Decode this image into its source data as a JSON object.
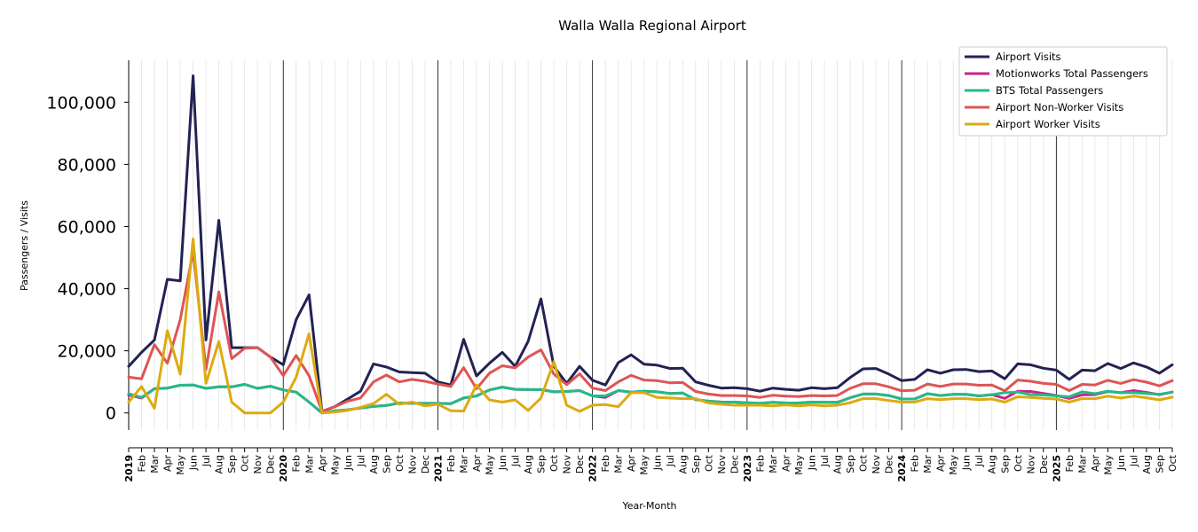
{
  "chart_data": {
    "type": "line",
    "title": "Walla Walla Regional Airport",
    "xlabel": "Year-Month",
    "ylabel": "Passengers / Visits",
    "ylim": [
      -5500,
      113500
    ],
    "yticks": [
      0,
      20000,
      40000,
      60000,
      80000,
      100000
    ],
    "ytick_labels": [
      "0",
      "20,000",
      "40,000",
      "60,000",
      "80,000",
      "100,000"
    ],
    "grid": "vertical minor lines per month, solid year separators",
    "legend_position": "top-right",
    "x": [
      "2019",
      "Feb",
      "Mar",
      "Apr",
      "May",
      "Jun",
      "Jul",
      "Aug",
      "Sep",
      "Oct",
      "Nov",
      "Dec",
      "2020",
      "Feb",
      "Mar",
      "Apr",
      "May",
      "Jun",
      "Jul",
      "Aug",
      "Sep",
      "Oct",
      "Nov",
      "Dec",
      "2021",
      "Feb",
      "Mar",
      "Apr",
      "May",
      "Jun",
      "Jul",
      "Aug",
      "Sep",
      "Oct",
      "Nov",
      "Dec",
      "2022",
      "Feb",
      "Mar",
      "Apr",
      "May",
      "Jun",
      "Jul",
      "Aug",
      "Sep",
      "Oct",
      "Nov",
      "Dec",
      "2023",
      "Feb",
      "Mar",
      "Apr",
      "May",
      "Jun",
      "Jul",
      "Aug",
      "Sep",
      "Oct",
      "Nov",
      "Dec",
      "2024",
      "Feb",
      "Mar",
      "Apr",
      "May",
      "Jun",
      "Jul",
      "Aug",
      "Sep",
      "Oct",
      "Nov",
      "Dec",
      "2025",
      "Feb",
      "Mar",
      "Apr",
      "May",
      "Jun",
      "Jul",
      "Aug",
      "Sep",
      "Oct"
    ],
    "series": [
      {
        "name": "Airport Visits",
        "color": "#222255",
        "values": [
          15000,
          19500,
          23500,
          43000,
          42500,
          108500,
          23500,
          62000,
          21000,
          21000,
          21000,
          18000,
          15500,
          30000,
          38000,
          500,
          2000,
          4500,
          7000,
          15800,
          14800,
          13200,
          13000,
          12800,
          10000,
          9000,
          23700,
          11900,
          16000,
          19500,
          15000,
          23000,
          36700,
          15000,
          9500,
          15000,
          10500,
          9000,
          16200,
          18700,
          15700,
          15400,
          14300,
          14400,
          10000,
          8900,
          8000,
          8100,
          7800,
          7000,
          8000,
          7600,
          7300,
          8100,
          7800,
          8100,
          11400,
          14200,
          14300,
          12500,
          10400,
          10800,
          13900,
          12800,
          13900,
          14000,
          13300,
          13500,
          11000,
          15800,
          15500,
          14400,
          13800,
          10800,
          13800,
          13600,
          15900,
          14300,
          16100,
          14800,
          12800,
          15500
        ]
      },
      {
        "name": "Motionworks Total Passengers",
        "color": "#cc2288",
        "values": [
          5800,
          4800,
          7800,
          8000,
          8900,
          9000,
          7900,
          8400,
          8400,
          9200,
          7900,
          8600,
          7400,
          6700,
          3500,
          0,
          700,
          1000,
          1600,
          2100,
          2400,
          3200,
          3100,
          3100,
          3100,
          3000,
          4800,
          5500,
          7400,
          8300,
          7600,
          7500,
          7500,
          6800,
          6900,
          7200,
          5500,
          5000,
          7200,
          6700,
          7000,
          6800,
          6300,
          6400,
          4300,
          3800,
          3500,
          3500,
          3300,
          3100,
          3400,
          3200,
          3200,
          3500,
          3400,
          3400,
          4900,
          6100,
          6100,
          5600,
          4500,
          4500,
          6200,
          5600,
          6000,
          6000,
          5500,
          5900,
          4700,
          7000,
          6900,
          6300,
          5600,
          4700,
          5800,
          5900,
          6900,
          6500,
          7200,
          6600,
          5900,
          6700
        ]
      },
      {
        "name": "BTS Total Passengers",
        "color": "#22bb88",
        "values": [
          6200,
          5000,
          7800,
          8000,
          8900,
          9000,
          7900,
          8400,
          8400,
          9200,
          7900,
          8600,
          7400,
          6700,
          3500,
          0,
          700,
          1000,
          1600,
          2100,
          2400,
          3200,
          3100,
          3100,
          3100,
          3000,
          4800,
          5500,
          7400,
          8300,
          7600,
          7500,
          7500,
          6800,
          6900,
          7200,
          5500,
          5500,
          7200,
          6700,
          7000,
          6800,
          6300,
          6400,
          4300,
          3800,
          3500,
          3500,
          3300,
          3100,
          3400,
          3200,
          3200,
          3500,
          3400,
          3400,
          4900,
          6100,
          6100,
          5600,
          4500,
          4500,
          6200,
          5600,
          6000,
          6000,
          5500,
          5900,
          6500,
          6700,
          5900,
          5800,
          5500,
          5200,
          6800,
          6200,
          7000,
          6500,
          6500,
          6300,
          6000,
          6700
        ]
      },
      {
        "name": "Airport Non-Worker Visits",
        "color": "#dd5555",
        "values": [
          11500,
          11000,
          22000,
          16000,
          30000,
          52000,
          14000,
          39000,
          17500,
          20800,
          21000,
          18000,
          12000,
          18500,
          12000,
          500,
          2000,
          3800,
          4800,
          10000,
          12200,
          10000,
          10800,
          10200,
          9300,
          8500,
          14600,
          7800,
          12800,
          15200,
          14500,
          18000,
          20300,
          12500,
          9100,
          12600,
          8000,
          7200,
          10000,
          12100,
          10600,
          10400,
          9700,
          9800,
          6900,
          6100,
          5600,
          5600,
          5500,
          5000,
          5700,
          5400,
          5300,
          5600,
          5500,
          5600,
          7900,
          9400,
          9400,
          8400,
          7100,
          7300,
          9300,
          8500,
          9300,
          9300,
          8900,
          9000,
          7100,
          10600,
          10200,
          9500,
          9200,
          7200,
          9200,
          9000,
          10500,
          9500,
          10700,
          9900,
          8700,
          10400
        ]
      },
      {
        "name": "Airport Worker Visits",
        "color": "#ddaa11",
        "values": [
          3500,
          8500,
          1500,
          26500,
          12500,
          56000,
          9500,
          23000,
          3500,
          0,
          0,
          0,
          3500,
          11500,
          25500,
          0,
          300,
          800,
          1800,
          3000,
          6000,
          2800,
          3500,
          2300,
          2800,
          700,
          600,
          9000,
          4200,
          3500,
          4200,
          800,
          4800,
          16500,
          2500,
          500,
          2500,
          2700,
          2000,
          6500,
          6500,
          5000,
          4800,
          4600,
          4600,
          3200,
          2800,
          2500,
          2500,
          2500,
          2300,
          2600,
          2300,
          2600,
          2300,
          2500,
          3300,
          4600,
          4600,
          4000,
          3500,
          3500,
          4600,
          4300,
          4600,
          4600,
          4300,
          4500,
          3500,
          5200,
          5000,
          4700,
          4500,
          3500,
          4600,
          4600,
          5400,
          4800,
          5400,
          4900,
          4200,
          5100
        ]
      }
    ]
  }
}
